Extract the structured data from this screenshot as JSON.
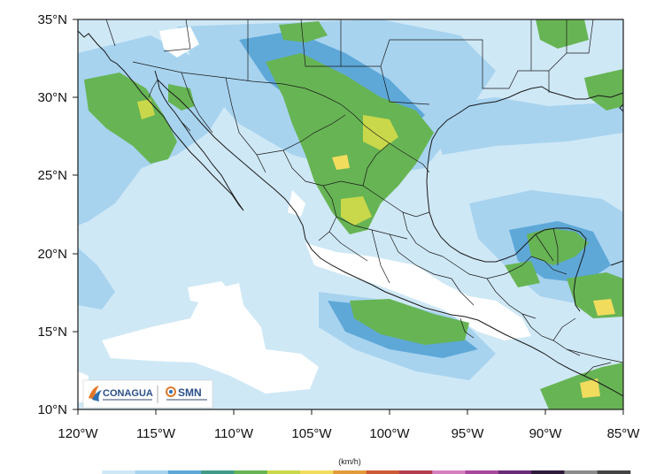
{
  "map": {
    "lon_ticks": [
      "120°W",
      "115°W",
      "110°W",
      "105°W",
      "100°W",
      "95°W",
      "90°W",
      "85°W"
    ],
    "lat_ticks": [
      "35°N",
      "30°N",
      "25°N",
      "20°N",
      "15°N",
      "10°N"
    ],
    "extent": {
      "lon": [
        -120,
        -85
      ],
      "lat": [
        10,
        35
      ]
    },
    "variable_unit": "(km/h)"
  },
  "colorbar": {
    "colors": [
      "#ffffff",
      "#cfe8f6",
      "#a7d3ef",
      "#5ea8d8",
      "#3f9b88",
      "#67b454",
      "#c9d84a",
      "#f2dc5e",
      "#e39a3b",
      "#cc5a37",
      "#b43e4f",
      "#d57fbf",
      "#a8489c",
      "#6b2a78",
      "#2e1b3a",
      "#8c8c8c",
      "#444444"
    ]
  },
  "logos": {
    "conagua": "CONAGUA",
    "smn": "SMN"
  },
  "palette": {
    "water_light": "#cfe8f6",
    "blue_mid": "#a7d3ef",
    "blue_dark": "#5ea8d8",
    "green_teal": "#3f9b88",
    "green": "#67b454",
    "yellow": "#f2dc5e",
    "border": "#1a1a1a"
  }
}
